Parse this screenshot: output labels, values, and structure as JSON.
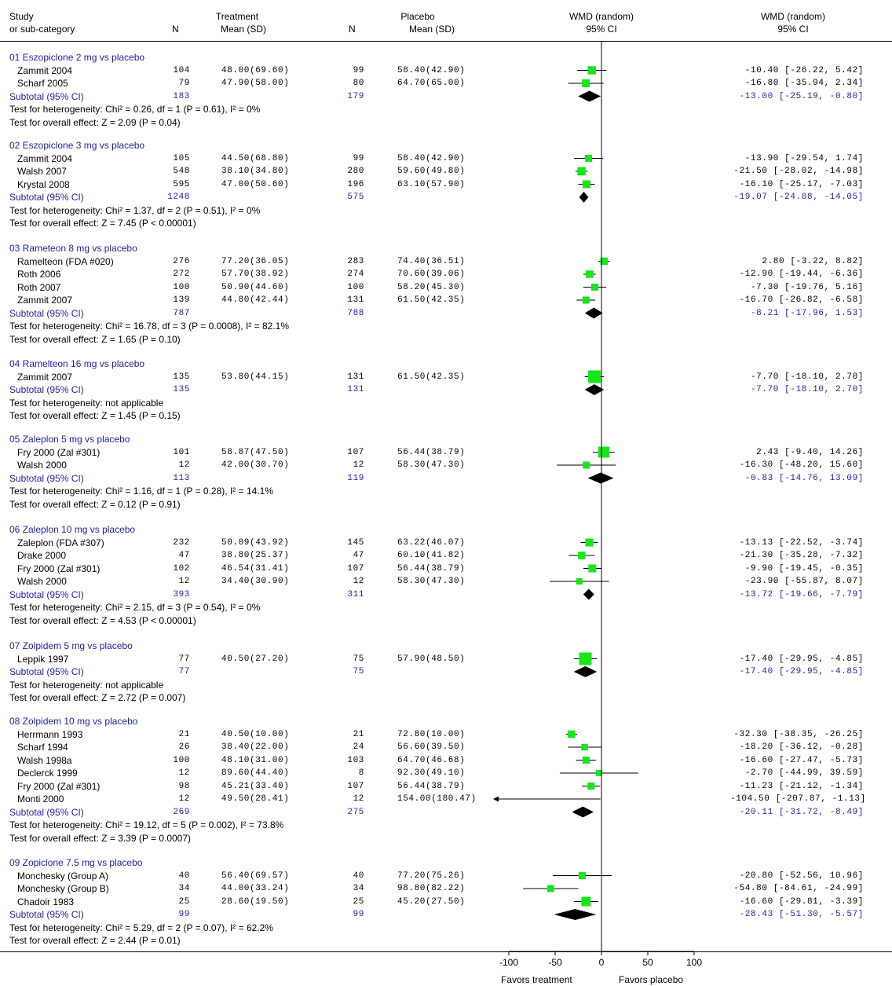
{
  "header": {
    "study": "Study",
    "subcat": "or sub-category",
    "treatment": "Treatment",
    "placebo": "Placebo",
    "n": "N",
    "mean_sd": "Mean (SD)",
    "wmd_plot": "WMD (random)",
    "ci_plot": "95% CI",
    "wmd_text": "WMD (random)",
    "ci_text": "95% CI"
  },
  "axis": {
    "ticks": [
      "-100",
      "-50",
      "0",
      "50",
      "100"
    ],
    "favors_left": "Favors treatment",
    "favors_right": "Favors placebo"
  },
  "chart_data": {
    "type": "forest",
    "xlim": [
      -100,
      100
    ],
    "colors": {
      "study_marker": "#19e619",
      "subtotal_diamond": "#000000",
      "subtotal_text": "#1f1fa0"
    },
    "groups": [
      {
        "title": "01 Eszopiclone 2 mg vs placebo",
        "studies": [
          {
            "name": "Zammit 2004",
            "tn": "104",
            "tms": "48.00(69.60)",
            "pn": "99",
            "pms": "58.40(42.90)",
            "ci": "-10.40 [-26.22, 5.42]",
            "est": -10.4,
            "lo": -26.22,
            "hi": 5.42,
            "w": 0.45
          },
          {
            "name": "Scharf 2005",
            "tn": "79",
            "tms": "47.90(58.00)",
            "pn": "80",
            "pms": "64.70(65.00)",
            "ci": "-16.80 [-35.94, 2.34]",
            "est": -16.8,
            "lo": -35.94,
            "hi": 2.34,
            "w": 0.4
          }
        ],
        "subtotal": {
          "label": "Subtotal (95% CI)",
          "tn": "183",
          "pn": "179",
          "ci": "-13.00 [-25.19, -0.80]",
          "est": -13.0,
          "lo": -25.19,
          "hi": -0.8
        },
        "het": "Test for heterogeneity: Chi² = 0.26, df = 1 (P = 0.61), I² = 0%",
        "overall": "Test for overall effect: Z = 2.09 (P = 0.04)"
      },
      {
        "title": "02 Eszopiclone 3 mg vs placebo",
        "studies": [
          {
            "name": "Zammit 2004",
            "tn": "105",
            "tms": "44.50(68.80)",
            "pn": "99",
            "pms": "58.40(42.90)",
            "ci": "-13.90 [-29.54, 1.74]",
            "est": -13.9,
            "lo": -29.54,
            "hi": 1.74,
            "w": 0.3
          },
          {
            "name": "Walsh 2007",
            "tn": "548",
            "tms": "38.10(34.80)",
            "pn": "280",
            "pms": "59.60(49.80)",
            "ci": "-21.50 [-28.02, -14.98]",
            "est": -21.5,
            "lo": -28.02,
            "hi": -14.98,
            "w": 0.45
          },
          {
            "name": "Krystal 2008",
            "tn": "595",
            "tms": "47.00(50.60)",
            "pn": "196",
            "pms": "63.10(57.90)",
            "ci": "-16.10 [-25.17, -7.03]",
            "est": -16.1,
            "lo": -25.17,
            "hi": -7.03,
            "w": 0.4
          }
        ],
        "subtotal": {
          "label": "Subtotal (95% CI)",
          "tn": "1248",
          "pn": "575",
          "ci": "-19.07 [-24.08, -14.05]",
          "est": -19.07,
          "lo": -24.08,
          "hi": -14.05
        },
        "het": "Test for heterogeneity: Chi² = 1.37, df = 2 (P = 0.51), I² = 0%",
        "overall": "Test for overall effect: Z = 7.45 (P < 0.00001)"
      },
      {
        "title": "03 Rameteon 8 mg vs placebo",
        "studies": [
          {
            "name": "Ramelteon (FDA #020)",
            "tn": "276",
            "tms": "77.20(36.05)",
            "pn": "283",
            "pms": "74.40(36.51)",
            "ci": "2.80 [-3.22, 8.82]",
            "est": 2.8,
            "lo": -3.22,
            "hi": 8.82,
            "w": 0.35
          },
          {
            "name": "Roth 2006",
            "tn": "272",
            "tms": "57.70(38.92)",
            "pn": "274",
            "pms": "70.60(39.06)",
            "ci": "-12.90 [-19.44, -6.36]",
            "est": -12.9,
            "lo": -19.44,
            "hi": -6.36,
            "w": 0.35
          },
          {
            "name": "Roth 2007",
            "tn": "100",
            "tms": "50.90(44.60)",
            "pn": "100",
            "pms": "58.20(45.30)",
            "ci": "-7.30 [-19.76, 5.16]",
            "est": -7.3,
            "lo": -19.76,
            "hi": 5.16,
            "w": 0.3
          },
          {
            "name": "Zammit 2007",
            "tn": "139",
            "tms": "44.80(42.44)",
            "pn": "131",
            "pms": "61.50(42.35)",
            "ci": "-16.70 [-26.82, -6.58]",
            "est": -16.7,
            "lo": -26.82,
            "hi": -6.58,
            "w": 0.3
          }
        ],
        "subtotal": {
          "label": "Subtotal (95% CI)",
          "tn": "787",
          "pn": "788",
          "ci": "-8.21 [-17.96, 1.53]",
          "est": -8.21,
          "lo": -17.96,
          "hi": 1.53
        },
        "het": "Test for heterogeneity: Chi² = 16.78, df = 3 (P = 0.0008), I² = 82.1%",
        "overall": "Test for overall effect: Z = 1.65 (P = 0.10)"
      },
      {
        "title": "04 Ramelteon 16 mg vs placebo",
        "studies": [
          {
            "name": "Zammit 2007",
            "tn": "135",
            "tms": "53.80(44.15)",
            "pn": "131",
            "pms": "61.50(42.35)",
            "ci": "-7.70 [-18.10, 2.70]",
            "est": -7.7,
            "lo": -18.1,
            "hi": 2.7,
            "w": 1.0
          }
        ],
        "subtotal": {
          "label": "Subtotal (95% CI)",
          "tn": "135",
          "pn": "131",
          "ci": "-7.70 [-18.10, 2.70]",
          "est": -7.7,
          "lo": -18.1,
          "hi": 2.7
        },
        "het": "Test for heterogeneity: not applicable",
        "overall": "Test for overall effect: Z = 1.45 (P = 0.15)"
      },
      {
        "title": "05 Zaleplon 5 mg vs placebo",
        "studies": [
          {
            "name": "Fry 2000 (Zal #301)",
            "tn": "101",
            "tms": "58.87(47.50)",
            "pn": "107",
            "pms": "56.44(38.79)",
            "ci": "2.43 [-9.40, 14.26]",
            "est": 2.43,
            "lo": -9.4,
            "hi": 14.26,
            "w": 0.8
          },
          {
            "name": "Walsh 2000",
            "tn": "12",
            "tms": "42.00(30.70)",
            "pn": "12",
            "pms": "58.30(47.30)",
            "ci": "-16.30 [-48.20, 15.60]",
            "est": -16.3,
            "lo": -48.2,
            "hi": 15.6,
            "w": 0.3
          }
        ],
        "subtotal": {
          "label": "Subtotal (95% CI)",
          "tn": "113",
          "pn": "119",
          "ci": "-0.83 [-14.76, 13.09]",
          "est": -0.83,
          "lo": -14.76,
          "hi": 13.09
        },
        "het": "Test for heterogeneity: Chi² = 1.16, df = 1 (P = 0.28), I² = 14.1%",
        "overall": "Test for overall effect: Z = 0.12 (P = 0.91)"
      },
      {
        "title": "06 Zaleplon 10 mg vs placebo",
        "studies": [
          {
            "name": "Zaleplon (FDA #307)",
            "tn": "232",
            "tms": "50.09(43.92)",
            "pn": "145",
            "pms": "63.22(46.07)",
            "ci": "-13.13 [-22.52, -3.74]",
            "est": -13.13,
            "lo": -22.52,
            "hi": -3.74,
            "w": 0.4
          },
          {
            "name": "Drake 2000",
            "tn": "47",
            "tms": "38.80(25.37)",
            "pn": "47",
            "pms": "60.10(41.82)",
            "ci": "-21.30 [-35.28, -7.32]",
            "est": -21.3,
            "lo": -35.28,
            "hi": -7.32,
            "w": 0.35
          },
          {
            "name": "Fry 2000 (Zal #301)",
            "tn": "102",
            "tms": "46.54(31.41)",
            "pn": "107",
            "pms": "56.44(38.79)",
            "ci": "-9.90 [-19.45, -0.35]",
            "est": -9.9,
            "lo": -19.45,
            "hi": -0.35,
            "w": 0.4
          },
          {
            "name": "Walsh 2000",
            "tn": "12",
            "tms": "34.40(30.90)",
            "pn": "12",
            "pms": "58.30(47.30)",
            "ci": "-23.90 [-55.87, 8.07]",
            "est": -23.9,
            "lo": -55.87,
            "hi": 8.07,
            "w": 0.2
          }
        ],
        "subtotal": {
          "label": "Subtotal (95% CI)",
          "tn": "393",
          "pn": "311",
          "ci": "-13.72 [-19.66, -7.79]",
          "est": -13.72,
          "lo": -19.66,
          "hi": -7.79
        },
        "het": "Test for heterogeneity: Chi² = 2.15, df = 3 (P = 0.54), I² = 0%",
        "overall": "Test for overall effect: Z = 4.53 (P < 0.00001)"
      },
      {
        "title": "07 Zolpidem 5 mg vs placebo",
        "studies": [
          {
            "name": "Leppik 1997",
            "tn": "77",
            "tms": "40.50(27.20)",
            "pn": "75",
            "pms": "57.90(48.50)",
            "ci": "-17.40 [-29.95, -4.85]",
            "est": -17.4,
            "lo": -29.95,
            "hi": -4.85,
            "w": 1.0
          }
        ],
        "subtotal": {
          "label": "Subtotal (95% CI)",
          "tn": "77",
          "pn": "75",
          "ci": "-17.40 [-29.95, -4.85]",
          "est": -17.4,
          "lo": -29.95,
          "hi": -4.85
        },
        "het": "Test for heterogeneity: not applicable",
        "overall": "Test for overall effect: Z = 2.72 (P = 0.007)"
      },
      {
        "title": "08 Zolpidem 10 mg vs placebo",
        "studies": [
          {
            "name": "Herrmann 1993",
            "tn": "21",
            "tms": "40.50(10.00)",
            "pn": "21",
            "pms": "72.80(10.00)",
            "ci": "-32.30 [-38.35, -26.25]",
            "est": -32.3,
            "lo": -38.35,
            "hi": -26.25,
            "w": 0.35
          },
          {
            "name": "Scharf 1994",
            "tn": "26",
            "tms": "38.40(22.00)",
            "pn": "24",
            "pms": "56.60(39.50)",
            "ci": "-18.20 [-36.12, -0.28]",
            "est": -18.2,
            "lo": -36.12,
            "hi": -0.28,
            "w": 0.25
          },
          {
            "name": "Walsh 1998a",
            "tn": "100",
            "tms": "48.10(31.00)",
            "pn": "103",
            "pms": "64.70(46.68)",
            "ci": "-16.60 [-27.47, -5.73]",
            "est": -16.6,
            "lo": -27.47,
            "hi": -5.73,
            "w": 0.3
          },
          {
            "name": "Declerck 1999",
            "tn": "12",
            "tms": "89.60(44.40)",
            "pn": "8",
            "pms": "92.30(49.10)",
            "ci": "-2.70 [-44.99, 39.59]",
            "est": -2.7,
            "lo": -44.99,
            "hi": 39.59,
            "w": 0.2
          },
          {
            "name": "Fry 2000 (Zal #301)",
            "tn": "98",
            "tms": "45.21(33.40)",
            "pn": "107",
            "pms": "56.44(38.79)",
            "ci": "-11.23 [-21.12, -1.34]",
            "est": -11.23,
            "lo": -21.12,
            "hi": -1.34,
            "w": 0.3
          },
          {
            "name": "Monti 2000",
            "tn": "12",
            "tms": "49.50(28.41)",
            "pn": "12",
            "pms": "154.00(180.47)",
            "ci": "-104.50 [-207.87, -1.13]",
            "est": -104.5,
            "lo": -207.87,
            "hi": -1.13,
            "w": 0.0
          }
        ],
        "subtotal": {
          "label": "Subtotal (95% CI)",
          "tn": "269",
          "pn": "275",
          "ci": "-20.11 [-31.72, -8.49]",
          "est": -20.11,
          "lo": -31.72,
          "hi": -8.49
        },
        "het": "Test for heterogeneity: Chi² = 19.12, df = 5 (P = 0.002), I² = 73.8%",
        "overall": "Test for overall effect: Z = 3.39 (P = 0.0007)"
      },
      {
        "title": "09 Zopiclone 7.5 mg vs placebo",
        "studies": [
          {
            "name": "Monchesky (Group A)",
            "tn": "40",
            "tms": "56.40(69.57)",
            "pn": "40",
            "pms": "77.20(75.26)",
            "ci": "-20.80 [-52.56, 10.96]",
            "est": -20.8,
            "lo": -52.56,
            "hi": 10.96,
            "w": 0.3
          },
          {
            "name": "Monchesky (Group B)",
            "tn": "34",
            "tms": "44.00(33.24)",
            "pn": "34",
            "pms": "98.80(82.22)",
            "ci": "-54.80 [-84.61, -24.99]",
            "est": -54.8,
            "lo": -84.61,
            "hi": -24.99,
            "w": 0.3
          },
          {
            "name": "Chadoir 1983",
            "tn": "25",
            "tms": "28.60(19.50)",
            "pn": "25",
            "pms": "45.20(27.50)",
            "ci": "-16.60 [-29.81, -3.39]",
            "est": -16.6,
            "lo": -29.81,
            "hi": -3.39,
            "w": 0.6
          }
        ],
        "subtotal": {
          "label": "Subtotal (95% CI)",
          "tn": "99",
          "pn": "99",
          "ci": "-28.43 [-51.30, -5.57]",
          "est": -28.43,
          "lo": -51.3,
          "hi": -5.57
        },
        "het": "Test for heterogeneity: Chi² = 5.29, df = 2 (P = 0.07), I² = 62.2%",
        "overall": "Test for overall effect: Z = 2.44 (P = 0.01)"
      }
    ]
  }
}
